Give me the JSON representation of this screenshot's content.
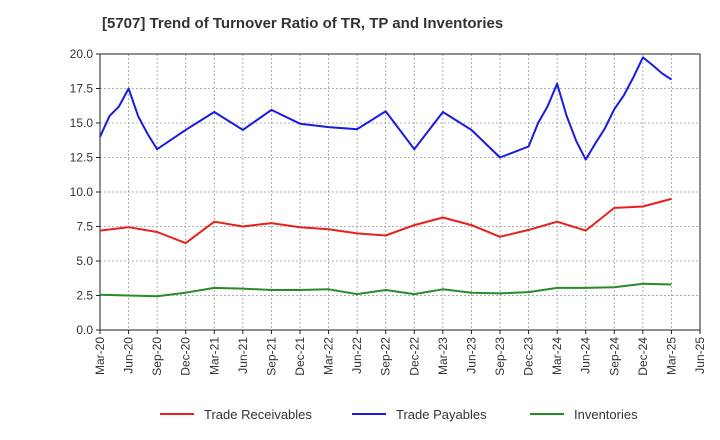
{
  "title": "[5707]  Trend of Turnover Ratio of TR, TP and Inventories",
  "chart_data": {
    "type": "line",
    "title": "[5707]  Trend of Turnover Ratio of TR, TP and Inventories",
    "xlabel": "",
    "ylabel": "",
    "ylim": [
      0,
      20
    ],
    "yticks": [
      "0.0",
      "2.5",
      "5.0",
      "7.5",
      "10.0",
      "12.5",
      "15.0",
      "17.5",
      "20.0"
    ],
    "xtick_labels": [
      "Mar-20",
      "Jun-20",
      "Sep-20",
      "Dec-20",
      "Mar-21",
      "Jun-21",
      "Sep-21",
      "Dec-21",
      "Mar-22",
      "Jun-22",
      "Sep-22",
      "Dec-22",
      "Mar-23",
      "Jun-23",
      "Sep-23",
      "Dec-23",
      "Mar-24",
      "Jun-24",
      "Sep-24",
      "Dec-24",
      "Mar-25",
      "Jun-25"
    ],
    "grid": true,
    "legend_position": "bottom",
    "x": [
      "Mar-20",
      "Apr-20",
      "May-20",
      "Jun-20",
      "Jul-20",
      "Aug-20",
      "Sep-20",
      "Dec-20",
      "Mar-21",
      "Jun-21",
      "Sep-21",
      "Dec-21",
      "Mar-22",
      "Jun-22",
      "Sep-22",
      "Dec-22",
      "Mar-23",
      "Jun-23",
      "Sep-23",
      "Dec-23",
      "Jan-24",
      "Feb-24",
      "Mar-24",
      "Apr-24",
      "May-24",
      "Jun-24",
      "Jul-24",
      "Aug-24",
      "Sep-24",
      "Oct-24",
      "Nov-24",
      "Dec-24",
      "Jan-25",
      "Feb-25",
      "Mar-25"
    ],
    "series": [
      {
        "name": "Trade Receivables",
        "color": "#e8201c",
        "values": [
          7.2,
          null,
          null,
          7.45,
          null,
          null,
          7.1,
          6.3,
          7.85,
          7.5,
          7.75,
          7.45,
          7.3,
          7.0,
          6.85,
          7.6,
          8.15,
          7.6,
          6.75,
          7.25,
          null,
          null,
          7.85,
          null,
          null,
          7.2,
          null,
          null,
          8.85,
          null,
          null,
          8.95,
          null,
          null,
          9.5
        ]
      },
      {
        "name": "Trade Payables",
        "color": "#1a1ae0",
        "values": [
          14.0,
          15.5,
          16.2,
          17.5,
          15.5,
          14.2,
          13.1,
          14.5,
          15.8,
          14.5,
          15.95,
          14.95,
          14.7,
          14.55,
          15.85,
          13.1,
          15.8,
          14.5,
          12.5,
          13.3,
          15.0,
          16.2,
          17.85,
          15.5,
          13.7,
          12.35,
          13.5,
          14.6,
          16.0,
          17.0,
          18.3,
          19.75,
          19.2,
          18.6,
          18.15
        ]
      },
      {
        "name": "Inventories",
        "color": "#2a8a2a",
        "values": [
          2.55,
          null,
          null,
          2.5,
          null,
          null,
          2.45,
          2.7,
          3.05,
          3.0,
          2.9,
          2.9,
          2.95,
          2.6,
          2.9,
          2.6,
          2.95,
          2.7,
          2.65,
          2.75,
          null,
          null,
          3.05,
          null,
          null,
          3.05,
          null,
          null,
          3.1,
          null,
          null,
          3.35,
          null,
          null,
          3.3
        ]
      }
    ]
  }
}
